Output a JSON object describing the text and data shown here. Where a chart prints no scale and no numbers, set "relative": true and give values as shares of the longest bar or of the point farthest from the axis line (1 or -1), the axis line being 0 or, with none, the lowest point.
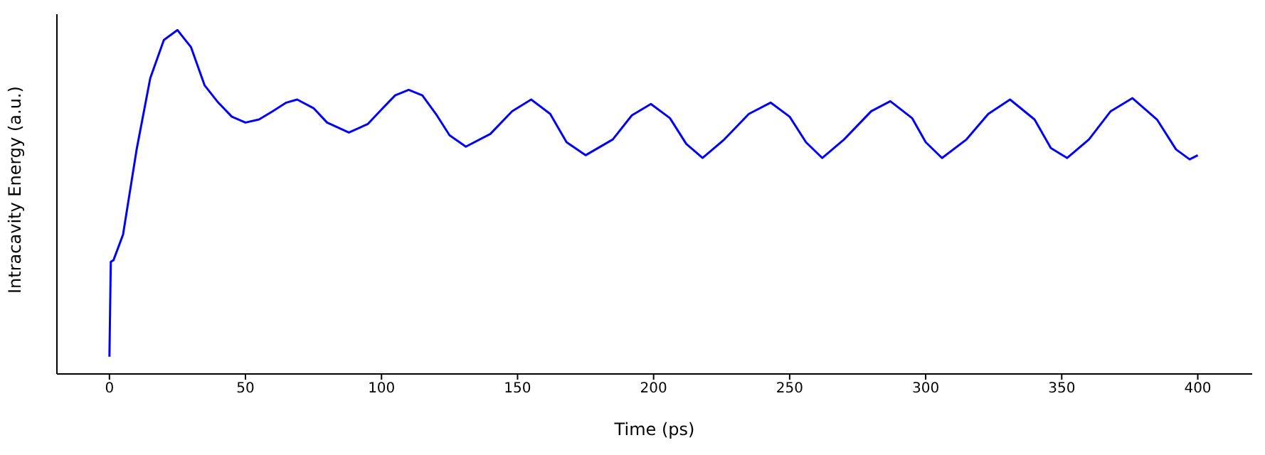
{
  "chart_data": {
    "type": "line",
    "xlabel": "Time (ps)",
    "ylabel": "Intracavity Energy (a.u.)",
    "relative": true,
    "xlim": [
      -19.3,
      420
    ],
    "xticks": [
      0,
      50,
      100,
      150,
      200,
      250,
      300,
      350,
      400
    ],
    "x": [
      0,
      0.5,
      1.5,
      5,
      10,
      15,
      20,
      25,
      30,
      35,
      40,
      45,
      50,
      55,
      60,
      65,
      69,
      75,
      80,
      88,
      95,
      100,
      105,
      110,
      115,
      120,
      125,
      131,
      140,
      148,
      155,
      162,
      168,
      175,
      185,
      192,
      199,
      206,
      212,
      218,
      226,
      235,
      243,
      250,
      256,
      262,
      270,
      280,
      287,
      295,
      300,
      306,
      315,
      323,
      331,
      340,
      346,
      352,
      360,
      368,
      376,
      385,
      392,
      397,
      400
    ],
    "series": [
      {
        "color": "#0000ff",
        "values": [
          0.05,
          0.326,
          0.331,
          0.405,
          0.653,
          0.86,
          0.971,
          1,
          0.95,
          0.839,
          0.789,
          0.748,
          0.731,
          0.74,
          0.764,
          0.789,
          0.798,
          0.773,
          0.731,
          0.702,
          0.727,
          0.769,
          0.81,
          0.826,
          0.81,
          0.756,
          0.694,
          0.661,
          0.698,
          0.764,
          0.798,
          0.756,
          0.674,
          0.636,
          0.682,
          0.752,
          0.785,
          0.744,
          0.669,
          0.628,
          0.682,
          0.756,
          0.789,
          0.748,
          0.674,
          0.628,
          0.682,
          0.764,
          0.793,
          0.744,
          0.674,
          0.628,
          0.682,
          0.756,
          0.798,
          0.74,
          0.657,
          0.628,
          0.682,
          0.764,
          0.802,
          0.74,
          0.653,
          0.624,
          0.636
        ]
      }
    ]
  }
}
